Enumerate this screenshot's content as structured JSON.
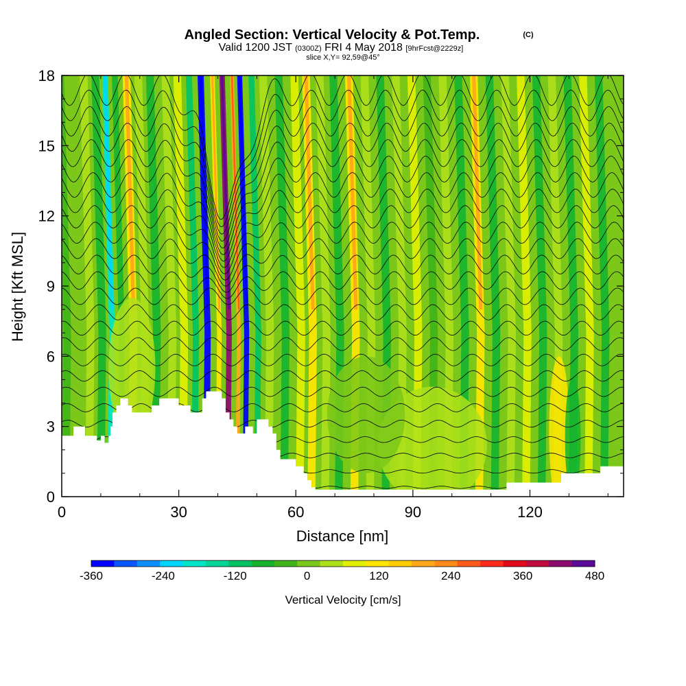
{
  "header": {
    "title": "Angled Section: Vertical Velocity & Pot.Temp.",
    "title_mark": "(C)",
    "line2_a": "Valid 1200 JST",
    "line2_small": "(0300Z)",
    "line2_b": "FRI 4 May 2018",
    "line2_tag": "[9hrFcst@2229z]",
    "line3": "slice X,Y= 92,59@45°"
  },
  "chart_data": {
    "type": "heatmap",
    "xlabel": "Distance [nm]",
    "ylabel": "Height [Kft MSL]",
    "xlim": [
      0,
      144
    ],
    "ylim": [
      0,
      18
    ],
    "x_ticks": [
      0,
      30,
      60,
      90,
      120
    ],
    "y_ticks": [
      0,
      3,
      6,
      9,
      12,
      15,
      18
    ],
    "minor_x_step": 10,
    "minor_y_step": 1,
    "field": "Vertical Velocity",
    "overlay": "Potential Temperature isolines",
    "bands": [
      {
        "x": 1,
        "w": 2,
        "v": -40
      },
      {
        "x": 4,
        "w": 2,
        "v": 20
      },
      {
        "x": 7,
        "w": 2,
        "v": 60
      },
      {
        "x": 10,
        "w": 2,
        "v": -80
      },
      {
        "x": 12.5,
        "w": 1.5,
        "v": -200
      },
      {
        "x": 15,
        "w": 1.5,
        "v": -60
      },
      {
        "x": 18,
        "w": 2,
        "v": 120
      },
      {
        "x": 21,
        "w": 2,
        "v": 60
      },
      {
        "x": 24,
        "w": 2,
        "v": -80
      },
      {
        "x": 28,
        "w": 2,
        "v": 40
      },
      {
        "x": 31,
        "w": 2,
        "v": 90
      },
      {
        "x": 34,
        "w": 1.6,
        "v": -100
      },
      {
        "x": 37,
        "w": 1.6,
        "v": -340
      },
      {
        "x": 40,
        "w": 1.2,
        "v": 120
      },
      {
        "x": 42.5,
        "w": 1.4,
        "v": 440
      },
      {
        "x": 45,
        "w": 1.0,
        "v": 200
      },
      {
        "x": 47,
        "w": 1.3,
        "v": -340
      },
      {
        "x": 50,
        "w": 1.5,
        "v": -100
      },
      {
        "x": 53,
        "w": 2,
        "v": 60
      },
      {
        "x": 57,
        "w": 2,
        "v": -60
      },
      {
        "x": 61,
        "w": 2,
        "v": 80
      },
      {
        "x": 64,
        "w": 2,
        "v": 150
      },
      {
        "x": 67.5,
        "w": 2,
        "v": 40
      },
      {
        "x": 71,
        "w": 2,
        "v": -60
      },
      {
        "x": 75,
        "w": 2,
        "v": 120
      },
      {
        "x": 79,
        "w": 2,
        "v": 40
      },
      {
        "x": 83,
        "w": 2,
        "v": -60
      },
      {
        "x": 87,
        "w": 2,
        "v": 60
      },
      {
        "x": 91,
        "w": 2,
        "v": 100
      },
      {
        "x": 95,
        "w": 2,
        "v": -40
      },
      {
        "x": 99,
        "w": 2,
        "v": 40
      },
      {
        "x": 103,
        "w": 2,
        "v": -60
      },
      {
        "x": 107,
        "w": 2,
        "v": 120
      },
      {
        "x": 111,
        "w": 2,
        "v": -50
      },
      {
        "x": 115,
        "w": 2,
        "v": 40
      },
      {
        "x": 119,
        "w": 2,
        "v": 100
      },
      {
        "x": 123,
        "w": 2,
        "v": -50
      },
      {
        "x": 127,
        "w": 2,
        "v": 60
      },
      {
        "x": 131,
        "w": 2,
        "v": -80
      },
      {
        "x": 135,
        "w": 2,
        "v": 80
      },
      {
        "x": 139,
        "w": 2,
        "v": -60
      },
      {
        "x": 142,
        "w": 2,
        "v": 30
      }
    ],
    "low_blobs": [
      {
        "x": 127.5,
        "y": 2.8,
        "rx": 2.6,
        "ry": 3.2,
        "v": 130
      },
      {
        "x": 131,
        "y": 2.5,
        "rx": 2,
        "ry": 2.6,
        "v": -60
      },
      {
        "x": 18,
        "y": 5.5,
        "rx": 6,
        "ry": 3,
        "v": 40
      },
      {
        "x": 95,
        "y": 2.2,
        "rx": 14,
        "ry": 2.5,
        "v": 50
      },
      {
        "x": 78,
        "y": 3.5,
        "rx": 10,
        "ry": 2.5,
        "v": 20
      }
    ],
    "terrain": [
      [
        0,
        2.6
      ],
      [
        3,
        2.6
      ],
      [
        3,
        3.0
      ],
      [
        6,
        3.0
      ],
      [
        6,
        2.6
      ],
      [
        9,
        2.6
      ],
      [
        9,
        2.4
      ],
      [
        10,
        2.4
      ],
      [
        10,
        2.6
      ],
      [
        11,
        2.6
      ],
      [
        11,
        2.3
      ],
      [
        12,
        2.3
      ],
      [
        12,
        2.6
      ],
      [
        12.5,
        2.6
      ],
      [
        12.5,
        3.0
      ],
      [
        13,
        3.0
      ],
      [
        13,
        3.6
      ],
      [
        14,
        3.6
      ],
      [
        14,
        3.9
      ],
      [
        15,
        3.9
      ],
      [
        15,
        4.2
      ],
      [
        17,
        4.2
      ],
      [
        17,
        3.9
      ],
      [
        18,
        3.9
      ],
      [
        18,
        3.6
      ],
      [
        23,
        3.6
      ],
      [
        23,
        3.9
      ],
      [
        25,
        3.9
      ],
      [
        25,
        4.2
      ],
      [
        30,
        4.2
      ],
      [
        30,
        3.9
      ],
      [
        33,
        3.9
      ],
      [
        33,
        3.6
      ],
      [
        36,
        3.6
      ],
      [
        36,
        4.2
      ],
      [
        37,
        4.2
      ],
      [
        37,
        4.5
      ],
      [
        41,
        4.5
      ],
      [
        41,
        4.2
      ],
      [
        42,
        4.2
      ],
      [
        42,
        3.6
      ],
      [
        43,
        3.6
      ],
      [
        43,
        3.3
      ],
      [
        44,
        3.3
      ],
      [
        44,
        3.0
      ],
      [
        45,
        3.0
      ],
      [
        45,
        2.7
      ],
      [
        47,
        2.7
      ],
      [
        47,
        3.0
      ],
      [
        49,
        3.0
      ],
      [
        49,
        2.7
      ],
      [
        50,
        2.7
      ],
      [
        50,
        3.3
      ],
      [
        53,
        3.3
      ],
      [
        53,
        3.0
      ],
      [
        54,
        3.0
      ],
      [
        54,
        2.7
      ],
      [
        55,
        2.7
      ],
      [
        55,
        2.0
      ],
      [
        56,
        2.0
      ],
      [
        56,
        1.6
      ],
      [
        60,
        1.6
      ],
      [
        60,
        1.3
      ],
      [
        62,
        1.3
      ],
      [
        62,
        1.0
      ],
      [
        63,
        1.0
      ],
      [
        63,
        0.7
      ],
      [
        64,
        0.7
      ],
      [
        64,
        0.4
      ],
      [
        65,
        0.4
      ],
      [
        65,
        0.3
      ],
      [
        114,
        0.3
      ],
      [
        114,
        0.6
      ],
      [
        128,
        0.6
      ],
      [
        128,
        1.0
      ],
      [
        138,
        1.0
      ],
      [
        138,
        1.3
      ],
      [
        144,
        1.3
      ]
    ],
    "isentropes": {
      "count": 26,
      "y_start": 0.4,
      "y_step": 0.68,
      "amp_base": 0.05,
      "amp_growth": 0.55,
      "wave_period_nm": 9.5,
      "wave_phase_shift": 0.9,
      "trough_center_nm": 42,
      "trough_depth": 5.5,
      "trough_width_nm": 7
    },
    "colorbar": {
      "label": "Vertical Velocity [cm/s]",
      "min": -360,
      "max": 480,
      "step": 40,
      "tick_labels": [
        "-360",
        "-240",
        "-120",
        "0",
        "120",
        "240",
        "360",
        "480"
      ],
      "colors": [
        "#0000ff",
        "#0a57ff",
        "#0a8fff",
        "#00d5ff",
        "#00e6c8",
        "#00d59a",
        "#00c464",
        "#16b42e",
        "#40b41a",
        "#7cc81a",
        "#aee01a",
        "#e0f000",
        "#ffe600",
        "#ffcc00",
        "#ffa81a",
        "#ff8a1a",
        "#ff5a1a",
        "#ff2a1a",
        "#e00a1a",
        "#c00a3c",
        "#8c0a6e",
        "#5a0a96"
      ]
    }
  }
}
